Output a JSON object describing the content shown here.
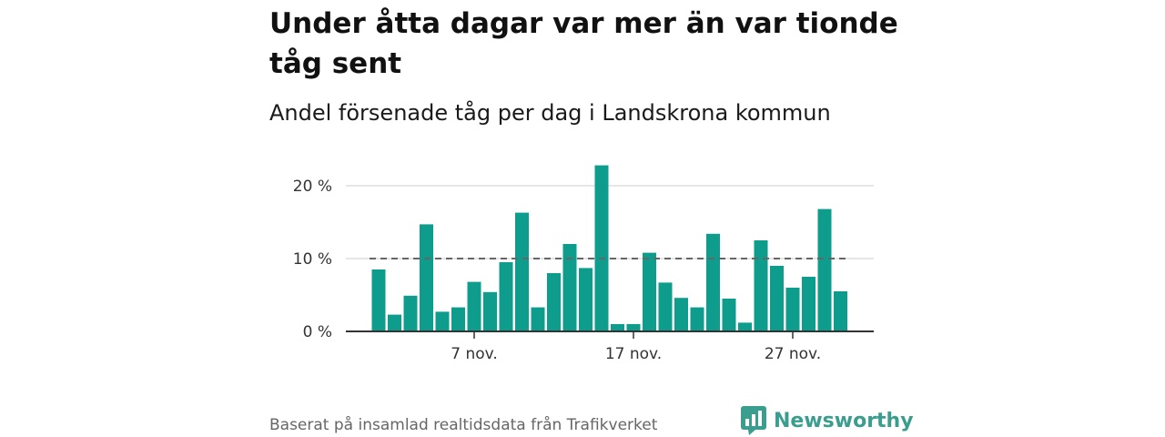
{
  "title": "Under åtta dagar var mer än var tionde tåg sent",
  "subtitle": "Andel försenade tåg per dag i Landskrona kommun",
  "source": "Baserat på insamlad realtidsdata från Trafikverket",
  "brand": {
    "name": "Newsworthy",
    "icon": "bar-chart-speech-bubble-icon",
    "color": "#3a9e8f"
  },
  "chart_data": {
    "type": "bar",
    "x": [
      1,
      2,
      3,
      4,
      5,
      6,
      7,
      8,
      9,
      10,
      11,
      12,
      13,
      14,
      15,
      16,
      17,
      18,
      19,
      20,
      21,
      22,
      23,
      24,
      25,
      26,
      27,
      28,
      29,
      30
    ],
    "values": [
      8.5,
      2.3,
      4.9,
      14.7,
      2.7,
      3.3,
      6.8,
      5.4,
      9.5,
      16.3,
      3.3,
      8.0,
      12.0,
      8.7,
      22.8,
      1.0,
      1.0,
      10.8,
      6.7,
      4.6,
      3.3,
      13.4,
      4.5,
      1.2,
      12.5,
      9.0,
      6.0,
      7.5,
      16.8,
      5.5
    ],
    "reference_line": 10,
    "ylim": [
      0,
      23
    ],
    "yticks": [
      0,
      10,
      20
    ],
    "ytick_labels": [
      "0 %",
      "10 %",
      "20 %"
    ],
    "xticks": [
      7,
      17,
      27
    ],
    "xtick_labels": [
      "7 nov.",
      "17 nov.",
      "27 nov."
    ],
    "bar_color": "#0e9c8d",
    "grid": true
  }
}
